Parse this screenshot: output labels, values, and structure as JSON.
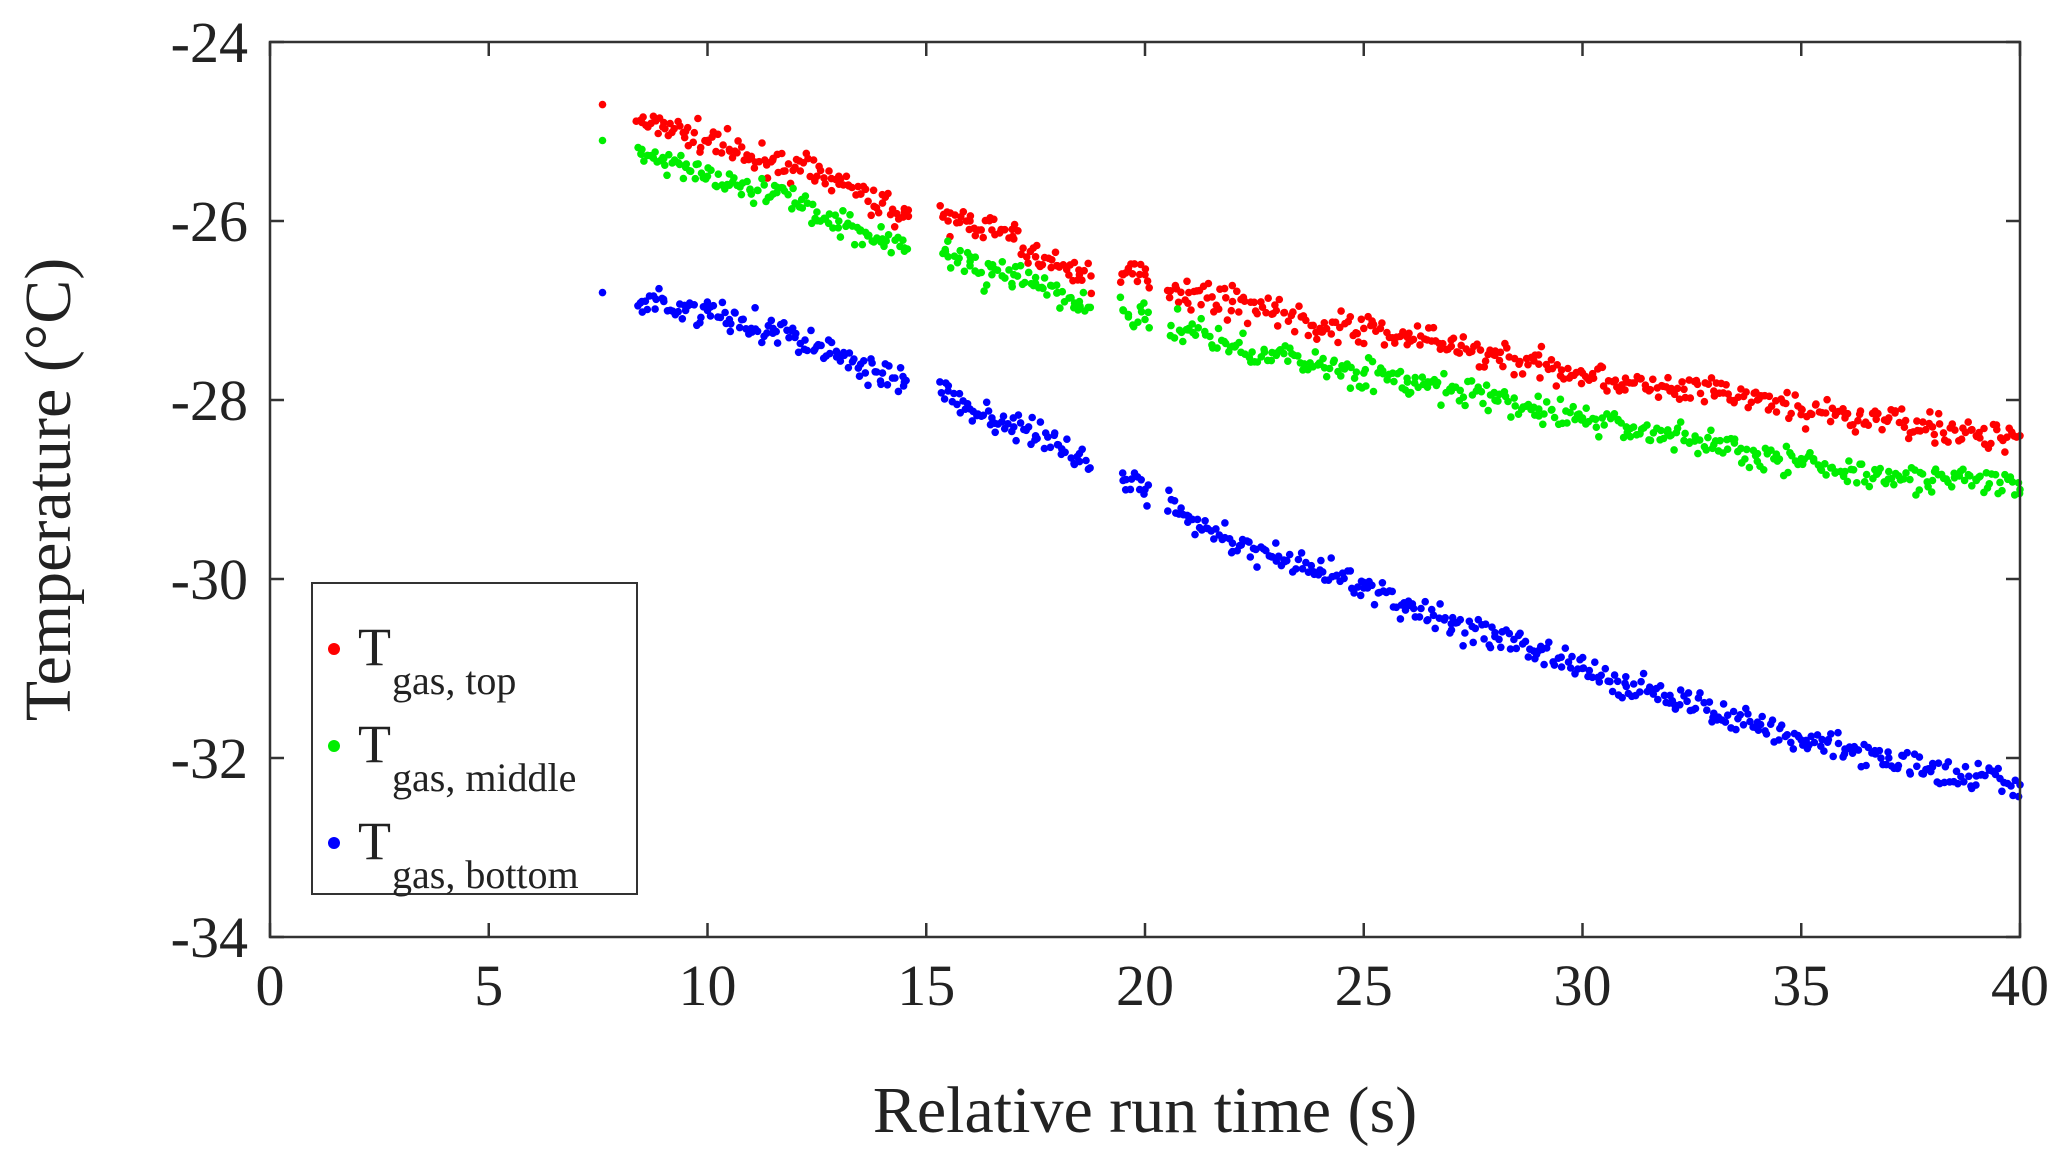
{
  "chart_data": {
    "type": "scatter",
    "xlabel": "Relative run time (s)",
    "ylabel": "Temperature (°C)",
    "xlim": [
      0,
      40
    ],
    "ylim": [
      -34,
      -24
    ],
    "xticks": [
      0,
      5,
      10,
      15,
      20,
      25,
      30,
      35,
      40
    ],
    "yticks": [
      -34,
      -32,
      -30,
      -28,
      -26,
      -24
    ],
    "xtick_labels": [
      "0",
      "5",
      "10",
      "15",
      "20",
      "25",
      "30",
      "35",
      "40"
    ],
    "ytick_labels": [
      "-34",
      "-32",
      "-30",
      "-28",
      "-26",
      "-24"
    ],
    "grid": false,
    "legend_position": "lower-left",
    "series": [
      {
        "name": "T",
        "subscript": "gas, top",
        "color": "#ff0000",
        "x": [
          7.6,
          8.5,
          9,
          9.5,
          10,
          10.5,
          11,
          11.5,
          12,
          12.5,
          13,
          13.5,
          14,
          14.5,
          15.5,
          16,
          16.5,
          17,
          17.5,
          18,
          18.5,
          19.5,
          20,
          21,
          22,
          23,
          24,
          25,
          26,
          27,
          28,
          29,
          30,
          31,
          32,
          33,
          34,
          35,
          36,
          37,
          38,
          39,
          40
        ],
        "y": [
          -24.7,
          -24.9,
          -24.9,
          -25.0,
          -25.1,
          -25.2,
          -25.3,
          -25.3,
          -25.4,
          -25.5,
          -25.5,
          -25.7,
          -25.8,
          -25.9,
          -26.0,
          -26.0,
          -26.1,
          -26.2,
          -26.4,
          -26.5,
          -26.6,
          -26.6,
          -26.6,
          -26.8,
          -26.9,
          -27.0,
          -27.2,
          -27.2,
          -27.3,
          -27.4,
          -27.5,
          -27.6,
          -27.7,
          -27.8,
          -27.9,
          -27.9,
          -28.0,
          -28.1,
          -28.2,
          -28.2,
          -28.3,
          -28.4,
          -28.4
        ]
      },
      {
        "name": "T",
        "subscript": "gas, middle",
        "color": "#00ee00",
        "x": [
          7.6,
          8.5,
          9,
          9.5,
          10,
          10.5,
          11,
          11.5,
          12,
          12.5,
          13,
          13.5,
          14,
          14.5,
          15.5,
          16,
          16.5,
          17,
          17.5,
          18,
          18.5,
          19.5,
          20,
          21,
          22,
          23,
          24,
          25,
          26,
          27,
          28,
          29,
          30,
          31,
          32,
          33,
          34,
          35,
          36,
          37,
          38,
          39,
          40
        ],
        "y": [
          -25.1,
          -25.2,
          -25.3,
          -25.4,
          -25.5,
          -25.6,
          -25.7,
          -25.7,
          -25.8,
          -25.9,
          -26.0,
          -26.1,
          -26.2,
          -26.3,
          -26.4,
          -26.5,
          -26.6,
          -26.6,
          -26.7,
          -26.8,
          -26.9,
          -27.0,
          -27.1,
          -27.2,
          -27.4,
          -27.5,
          -27.6,
          -27.7,
          -27.8,
          -27.9,
          -28.0,
          -28.1,
          -28.2,
          -28.3,
          -28.4,
          -28.5,
          -28.6,
          -28.7,
          -28.8,
          -28.8,
          -28.9,
          -28.9,
          -29.0
        ]
      },
      {
        "name": "T",
        "subscript": "gas, bottom",
        "color": "#0000ff",
        "x": [
          7.6,
          8.5,
          9,
          9.5,
          10,
          10.5,
          11,
          11.5,
          12,
          12.5,
          13,
          13.5,
          14,
          14.5,
          15.5,
          16,
          16.5,
          17,
          17.5,
          18,
          18.5,
          19.5,
          20,
          21,
          22,
          23,
          24,
          25,
          26,
          27,
          28,
          29,
          30,
          31,
          32,
          33,
          34,
          35,
          36,
          37,
          38,
          39,
          40
        ],
        "y": [
          -26.8,
          -26.9,
          -26.9,
          -27.0,
          -27.0,
          -27.1,
          -27.2,
          -27.2,
          -27.3,
          -27.4,
          -27.5,
          -27.6,
          -27.7,
          -27.8,
          -27.9,
          -28.1,
          -28.2,
          -28.3,
          -28.4,
          -28.5,
          -28.6,
          -28.9,
          -29.0,
          -29.3,
          -29.6,
          -29.8,
          -29.9,
          -30.1,
          -30.3,
          -30.5,
          -30.6,
          -30.8,
          -31.0,
          -31.2,
          -31.3,
          -31.5,
          -31.6,
          -31.8,
          -31.9,
          -32.0,
          -32.1,
          -32.2,
          -32.3
        ]
      }
    ]
  }
}
